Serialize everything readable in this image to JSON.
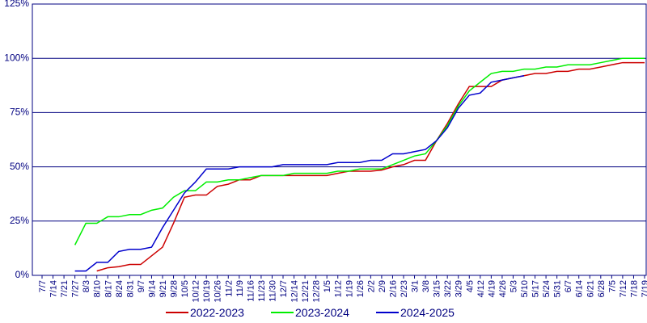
{
  "chart_data": {
    "type": "line",
    "categories": [
      "7/7",
      "7/14",
      "7/21",
      "7/27",
      "8/3",
      "8/10",
      "8/17",
      "8/24",
      "8/31",
      "9/7",
      "9/14",
      "9/21",
      "9/28",
      "10/5",
      "10/12",
      "10/19",
      "10/26",
      "11/2",
      "11/9",
      "11/16",
      "11/23",
      "11/30",
      "12/7",
      "12/14",
      "12/21",
      "12/28",
      "1/5",
      "1/12",
      "1/19",
      "1/26",
      "2/2",
      "2/9",
      "2/16",
      "2/23",
      "3/1",
      "3/8",
      "3/15",
      "3/22",
      "3/29",
      "4/5",
      "4/12",
      "4/19",
      "4/26",
      "5/3",
      "5/10",
      "5/17",
      "5/24",
      "5/31",
      "6/7",
      "6/14",
      "6/21",
      "6/28",
      "7/5",
      "7/12",
      "7/18",
      "7/19"
    ],
    "series": [
      {
        "name": "2022-2023",
        "color": "#cc0000",
        "values": [
          null,
          null,
          null,
          null,
          null,
          2,
          3.5,
          4,
          5,
          5,
          9,
          13,
          24,
          36,
          37,
          37,
          41,
          42,
          44,
          44,
          46,
          46,
          46,
          46,
          46,
          46,
          46,
          47,
          48,
          48,
          48,
          48.5,
          50,
          51,
          53,
          53,
          62,
          70,
          79,
          87,
          87,
          87,
          90,
          91,
          92,
          93,
          93,
          94,
          94,
          95,
          95,
          96,
          97,
          98,
          98,
          98
        ]
      },
      {
        "name": "2023-2024",
        "color": "#00ee00",
        "values": [
          null,
          null,
          null,
          14,
          24,
          24,
          27,
          27,
          28,
          28,
          30,
          31,
          36,
          39,
          39,
          43,
          43,
          44,
          44,
          45,
          46,
          46,
          46,
          47,
          47,
          47,
          47,
          48,
          48,
          49,
          49,
          49,
          51,
          53,
          55,
          56,
          62,
          69,
          78,
          85,
          89,
          93,
          94,
          94,
          95,
          95,
          96,
          96,
          97,
          97,
          97,
          98,
          99,
          100,
          100,
          100
        ]
      },
      {
        "name": "2024-2025",
        "color": "#0000cc",
        "values": [
          null,
          null,
          null,
          2,
          2,
          6,
          6,
          11,
          12,
          12,
          13,
          22,
          30,
          38,
          43,
          49,
          49,
          49,
          50,
          50,
          50,
          50,
          51,
          51,
          51,
          51,
          51,
          52,
          52,
          52,
          53,
          53,
          56,
          56,
          57,
          58,
          62,
          68,
          77,
          83,
          84,
          89,
          90,
          91,
          92,
          null,
          null,
          null,
          null,
          null,
          null,
          null,
          null,
          null,
          null,
          null
        ]
      }
    ],
    "ylim": [
      0,
      125
    ],
    "yticks": [
      {
        "value": 0,
        "label": "0%"
      },
      {
        "value": 25,
        "label": "25%"
      },
      {
        "value": 50,
        "label": "50%"
      },
      {
        "value": 75,
        "label": "75%"
      },
      {
        "value": 100,
        "label": "100%"
      },
      {
        "value": 125,
        "label": "125%"
      }
    ],
    "grid": true,
    "legend": "bottom"
  }
}
